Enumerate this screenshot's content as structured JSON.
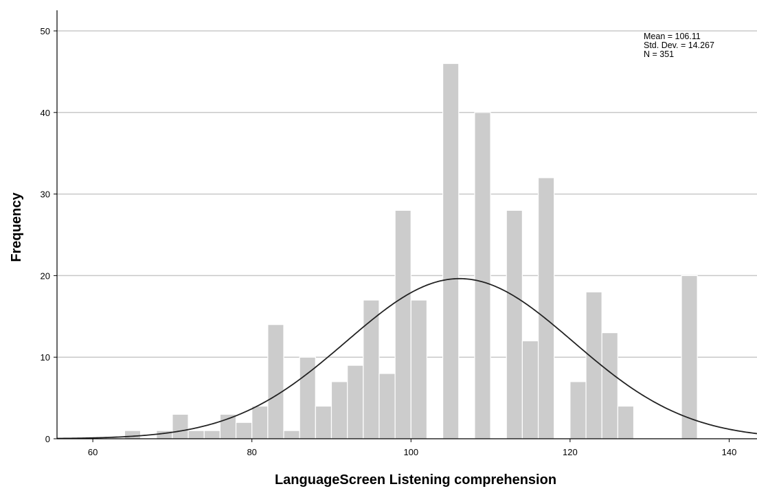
{
  "chart_data": {
    "type": "bar",
    "subtype": "histogram",
    "title": "",
    "xlabel": "LanguageScreen Listening comprehension",
    "ylabel": "Frequency",
    "xlim": [
      55.5,
      143.5
    ],
    "ylim": [
      0,
      50
    ],
    "x_ticks": [
      60,
      80,
      100,
      120,
      140
    ],
    "y_ticks": [
      0,
      10,
      20,
      30,
      40,
      50
    ],
    "grid": "horizontal",
    "bin_width": 2,
    "bar_color": "#cccccc",
    "bar_edge_color": "#ffffff",
    "curve_color": "#222222",
    "bins": [
      {
        "start": 64,
        "end": 66,
        "count": 1
      },
      {
        "start": 68,
        "end": 70,
        "count": 1
      },
      {
        "start": 70,
        "end": 72,
        "count": 3
      },
      {
        "start": 72,
        "end": 74,
        "count": 1
      },
      {
        "start": 74,
        "end": 76,
        "count": 1
      },
      {
        "start": 76,
        "end": 78,
        "count": 3
      },
      {
        "start": 78,
        "end": 80,
        "count": 2
      },
      {
        "start": 80,
        "end": 82,
        "count": 4
      },
      {
        "start": 82,
        "end": 84,
        "count": 14
      },
      {
        "start": 84,
        "end": 86,
        "count": 1
      },
      {
        "start": 86,
        "end": 88,
        "count": 10
      },
      {
        "start": 88,
        "end": 90,
        "count": 4
      },
      {
        "start": 90,
        "end": 92,
        "count": 7
      },
      {
        "start": 92,
        "end": 94,
        "count": 9
      },
      {
        "start": 94,
        "end": 96,
        "count": 17
      },
      {
        "start": 96,
        "end": 98,
        "count": 8
      },
      {
        "start": 98,
        "end": 100,
        "count": 28
      },
      {
        "start": 100,
        "end": 102,
        "count": 17
      },
      {
        "start": 104,
        "end": 106,
        "count": 46
      },
      {
        "start": 108,
        "end": 110,
        "count": 40
      },
      {
        "start": 112,
        "end": 114,
        "count": 28
      },
      {
        "start": 114,
        "end": 116,
        "count": 12
      },
      {
        "start": 116,
        "end": 118,
        "count": 32
      },
      {
        "start": 120,
        "end": 122,
        "count": 7
      },
      {
        "start": 122,
        "end": 124,
        "count": 18
      },
      {
        "start": 124,
        "end": 126,
        "count": 13
      },
      {
        "start": 126,
        "end": 128,
        "count": 4
      },
      {
        "start": 134,
        "end": 136,
        "count": 20
      }
    ],
    "normal_curve": {
      "mean": 106.11,
      "sd": 14.267,
      "n": 351
    },
    "stats_box": {
      "placement": "top-right",
      "lines": [
        "Mean = 106.11",
        "Std. Dev. = 14.267",
        "N = 351"
      ]
    }
  }
}
